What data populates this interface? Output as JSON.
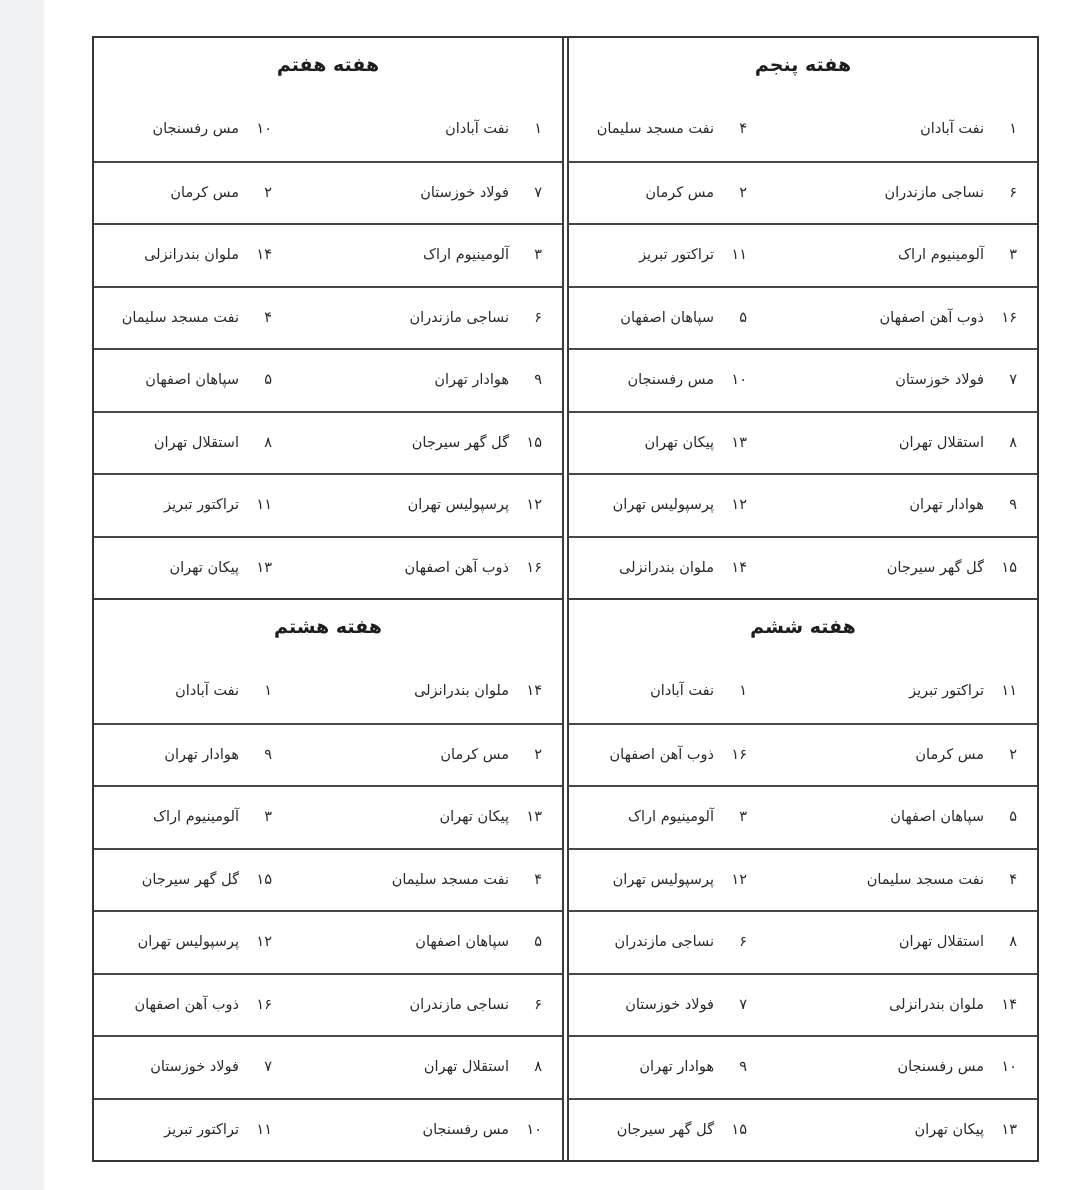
{
  "page": {
    "background": "#ffffff",
    "left_strip_color": "#f1f2f4",
    "outer_border_color": "#363636",
    "row_border_color": "#474747",
    "text_color": "#2a2a2a"
  },
  "layout": {
    "halves": [
      {
        "side": "right",
        "weeks": [
          0,
          1
        ]
      },
      {
        "side": "left",
        "weeks": [
          2,
          3
        ]
      }
    ]
  },
  "weeks": [
    {
      "id": "week-5",
      "title": "هفته پنجم",
      "matches": [
        {
          "home_number": "۱",
          "home_team": "نفت آبادان",
          "away_number": "۴",
          "away_team": "نفت مسجد سلیمان"
        },
        {
          "home_number": "۶",
          "home_team": "نساجی مازندران",
          "away_number": "۲",
          "away_team": "مس کرمان"
        },
        {
          "home_number": "۳",
          "home_team": "آلومینیوم اراک",
          "away_number": "۱۱",
          "away_team": "تراکتور تبریز"
        },
        {
          "home_number": "۱۶",
          "home_team": "ذوب آهن اصفهان",
          "away_number": "۵",
          "away_team": "سپاهان اصفهان"
        },
        {
          "home_number": "۷",
          "home_team": "فولاد خوزستان",
          "away_number": "۱۰",
          "away_team": "مس رفسنجان"
        },
        {
          "home_number": "۸",
          "home_team": "استقلال تهران",
          "away_number": "۱۳",
          "away_team": "پیکان تهران"
        },
        {
          "home_number": "۹",
          "home_team": "هوادار تهران",
          "away_number": "۱۲",
          "away_team": "پرسپولیس تهران"
        },
        {
          "home_number": "۱۵",
          "home_team": "گل گهر سیرجان",
          "away_number": "۱۴",
          "away_team": "ملوان بندرانزلی"
        }
      ]
    },
    {
      "id": "week-6",
      "title": "هفته ششم",
      "matches": [
        {
          "home_number": "۱۱",
          "home_team": "تراکتور تبریز",
          "away_number": "۱",
          "away_team": "نفت آبادان"
        },
        {
          "home_number": "۲",
          "home_team": "مس کرمان",
          "away_number": "۱۶",
          "away_team": "ذوب آهن اصفهان"
        },
        {
          "home_number": "۵",
          "home_team": "سپاهان اصفهان",
          "away_number": "۳",
          "away_team": "آلومینیوم اراک"
        },
        {
          "home_number": "۴",
          "home_team": "نفت مسجد سلیمان",
          "away_number": "۱۲",
          "away_team": "پرسپولیس تهران"
        },
        {
          "home_number": "۸",
          "home_team": "استقلال تهران",
          "away_number": "۶",
          "away_team": "نساجی مازندران"
        },
        {
          "home_number": "۱۴",
          "home_team": "ملوان بندرانزلی",
          "away_number": "۷",
          "away_team": "فولاد خوزستان"
        },
        {
          "home_number": "۱۰",
          "home_team": "مس رفسنجان",
          "away_number": "۹",
          "away_team": "هوادار تهران"
        },
        {
          "home_number": "۱۳",
          "home_team": "پیکان تهران",
          "away_number": "۱۵",
          "away_team": "گل گهر سیرجان"
        }
      ]
    },
    {
      "id": "week-7",
      "title": "هفته هفتم",
      "matches": [
        {
          "home_number": "۱",
          "home_team": "نفت آبادان",
          "away_number": "۱۰",
          "away_team": "مس رفسنجان"
        },
        {
          "home_number": "۷",
          "home_team": "فولاد خوزستان",
          "away_number": "۲",
          "away_team": "مس کرمان"
        },
        {
          "home_number": "۳",
          "home_team": "آلومینیوم اراک",
          "away_number": "۱۴",
          "away_team": "ملوان بندرانزلی"
        },
        {
          "home_number": "۶",
          "home_team": "نساجی مازندران",
          "away_number": "۴",
          "away_team": "نفت مسجد سلیمان"
        },
        {
          "home_number": "۹",
          "home_team": "هوادار تهران",
          "away_number": "۵",
          "away_team": "سپاهان اصفهان"
        },
        {
          "home_number": "۱۵",
          "home_team": "گل گهر سیرجان",
          "away_number": "۸",
          "away_team": "استقلال تهران"
        },
        {
          "home_number": "۱۲",
          "home_team": "پرسپولیس تهران",
          "away_number": "۱۱",
          "away_team": "تراکتور تبریز"
        },
        {
          "home_number": "۱۶",
          "home_team": "ذوب آهن اصفهان",
          "away_number": "۱۳",
          "away_team": "پیکان تهران"
        }
      ]
    },
    {
      "id": "week-8",
      "title": "هفته هشتم",
      "matches": [
        {
          "home_number": "۱۴",
          "home_team": "ملوان بندرانزلی",
          "away_number": "۱",
          "away_team": "نفت آبادان"
        },
        {
          "home_number": "۲",
          "home_team": "مس کرمان",
          "away_number": "۹",
          "away_team": "هوادار تهران"
        },
        {
          "home_number": "۱۳",
          "home_team": "پیکان تهران",
          "away_number": "۳",
          "away_team": "آلومینیوم اراک"
        },
        {
          "home_number": "۴",
          "home_team": "نفت مسجد سلیمان",
          "away_number": "۱۵",
          "away_team": "گل گهر سیرجان"
        },
        {
          "home_number": "۵",
          "home_team": "سپاهان اصفهان",
          "away_number": "۱۲",
          "away_team": "پرسپولیس تهران"
        },
        {
          "home_number": "۶",
          "home_team": "نساجی مازندران",
          "away_number": "۱۶",
          "away_team": "ذوب آهن اصفهان"
        },
        {
          "home_number": "۸",
          "home_team": "استقلال تهران",
          "away_number": "۷",
          "away_team": "فولاد خوزستان"
        },
        {
          "home_number": "۱۰",
          "home_team": "مس رفسنجان",
          "away_number": "۱۱",
          "away_team": "تراکتور تبریز"
        }
      ]
    }
  ]
}
